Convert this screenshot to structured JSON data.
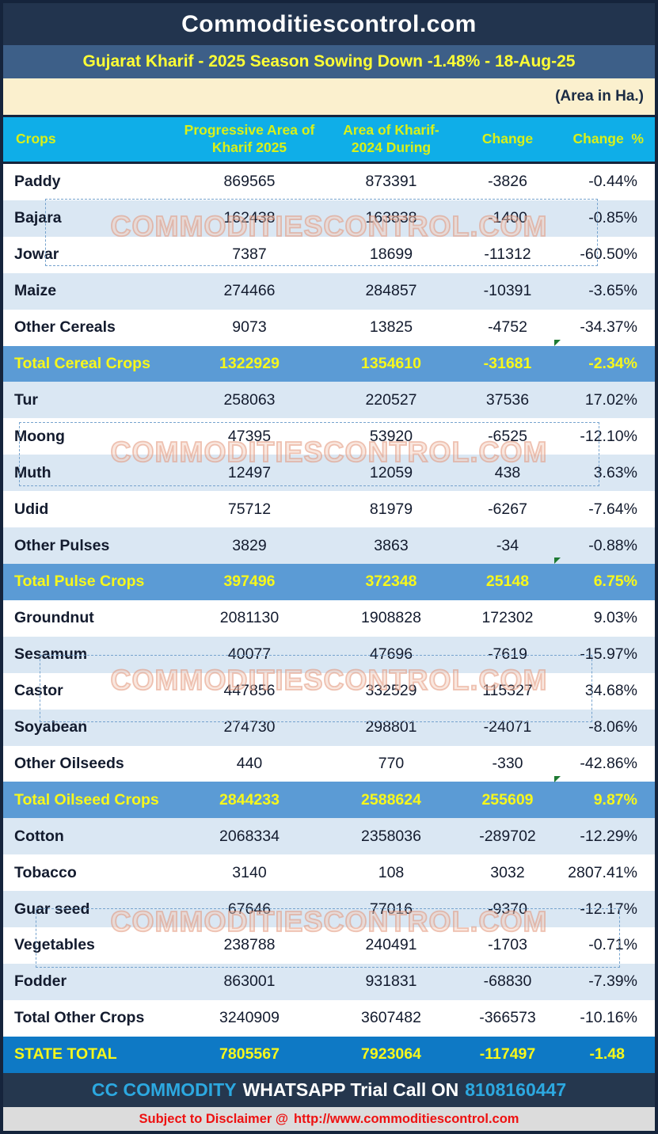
{
  "brand": {
    "title": "Commoditiescontrol.com"
  },
  "report": {
    "headline": "Gujarat Kharif - 2025 Season Sowing Down -1.48% - 18-Aug-25",
    "unit_note": "(Area in Ha.)"
  },
  "watermark": {
    "text": "COMMODITIESCONTROL.COM"
  },
  "table": {
    "columns": [
      "Crops",
      "Progressive Area of Kharif 2025",
      "Area of Kharif-2024 During",
      "Change",
      "Change  %"
    ],
    "rows": [
      {
        "crop": "Paddy",
        "area_2025": "869565",
        "area_2024": "873391",
        "change": "-3826",
        "change_pct": "-0.44%",
        "style": "light"
      },
      {
        "crop": "Bajara",
        "area_2025": "162438",
        "area_2024": "163838",
        "change": "-1400",
        "change_pct": "-0.85%",
        "style": "shaded"
      },
      {
        "crop": "Jowar",
        "area_2025": "7387",
        "area_2024": "18699",
        "change": "-11312",
        "change_pct": "-60.50%",
        "style": "light"
      },
      {
        "crop": "Maize",
        "area_2025": "274466",
        "area_2024": "284857",
        "change": "-10391",
        "change_pct": "-3.65%",
        "style": "shaded"
      },
      {
        "crop": "Other Cereals",
        "area_2025": "9073",
        "area_2024": "13825",
        "change": "-4752",
        "change_pct": "-34.37%",
        "style": "light"
      },
      {
        "crop": "Total Cereal Crops",
        "area_2025": "1322929",
        "area_2024": "1354610",
        "change": "-31681",
        "change_pct": "-2.34%",
        "style": "section_total"
      },
      {
        "crop": "Tur",
        "area_2025": "258063",
        "area_2024": "220527",
        "change": "37536",
        "change_pct": "17.02%",
        "style": "shaded"
      },
      {
        "crop": "Moong",
        "area_2025": "47395",
        "area_2024": "53920",
        "change": "-6525",
        "change_pct": "-12.10%",
        "style": "light"
      },
      {
        "crop": "Muth",
        "area_2025": "12497",
        "area_2024": "12059",
        "change": "438",
        "change_pct": "3.63%",
        "style": "shaded"
      },
      {
        "crop": "Udid",
        "area_2025": "75712",
        "area_2024": "81979",
        "change": "-6267",
        "change_pct": "-7.64%",
        "style": "light"
      },
      {
        "crop": "Other Pulses",
        "area_2025": "3829",
        "area_2024": "3863",
        "change": "-34",
        "change_pct": "-0.88%",
        "style": "shaded"
      },
      {
        "crop": "Total Pulse Crops",
        "area_2025": "397496",
        "area_2024": "372348",
        "change": "25148",
        "change_pct": "6.75%",
        "style": "section_total"
      },
      {
        "crop": "Groundnut",
        "area_2025": "2081130",
        "area_2024": "1908828",
        "change": "172302",
        "change_pct": "9.03%",
        "style": "light"
      },
      {
        "crop": "Sesamum",
        "area_2025": "40077",
        "area_2024": "47696",
        "change": "-7619",
        "change_pct": "-15.97%",
        "style": "shaded"
      },
      {
        "crop": "Castor",
        "area_2025": "447856",
        "area_2024": "332529",
        "change": "115327",
        "change_pct": "34.68%",
        "style": "light"
      },
      {
        "crop": "Soyabean",
        "area_2025": "274730",
        "area_2024": "298801",
        "change": "-24071",
        "change_pct": "-8.06%",
        "style": "shaded"
      },
      {
        "crop": "Other Oilseeds",
        "area_2025": "440",
        "area_2024": "770",
        "change": "-330",
        "change_pct": "-42.86%",
        "style": "light"
      },
      {
        "crop": "Total Oilseed Crops",
        "area_2025": "2844233",
        "area_2024": "2588624",
        "change": "255609",
        "change_pct": "9.87%",
        "style": "section_total"
      },
      {
        "crop": "Cotton",
        "area_2025": "2068334",
        "area_2024": "2358036",
        "change": "-289702",
        "change_pct": "-12.29%",
        "style": "shaded"
      },
      {
        "crop": "Tobacco",
        "area_2025": "3140",
        "area_2024": "108",
        "change": "3032",
        "change_pct": "2807.41%",
        "style": "light"
      },
      {
        "crop": "Guar seed",
        "area_2025": "67646",
        "area_2024": "77016",
        "change": "-9370",
        "change_pct": "-12.17%",
        "style": "shaded"
      },
      {
        "crop": "Vegetables",
        "area_2025": "238788",
        "area_2024": "240491",
        "change": "-1703",
        "change_pct": "-0.71%",
        "style": "light"
      },
      {
        "crop": "Fodder",
        "area_2025": "863001",
        "area_2024": "931831",
        "change": "-68830",
        "change_pct": "-7.39%",
        "style": "shaded"
      },
      {
        "crop": "Total Other Crops",
        "area_2025": "3240909",
        "area_2024": "3607482",
        "change": "-366573",
        "change_pct": "-10.16%",
        "style": "light"
      },
      {
        "crop": "STATE TOTAL",
        "area_2025": "7805567",
        "area_2024": "7923064",
        "change": "-117497",
        "change_pct": "-1.48",
        "style": "grand_total"
      }
    ]
  },
  "footer": {
    "brand": "CC COMMODITY",
    "message": "WHATSAPP Trial Call ON",
    "phone": "8108160447"
  },
  "disclaimer": {
    "label": "Subject to Disclaimer @",
    "url": "http://www.commoditiescontrol.com"
  },
  "colors": {
    "top_bar": "#22344E",
    "headline_bar": "#3D5F88",
    "headline_text": "#FFFF35",
    "unit_bar": "#FBF0CE",
    "table_header_bg": "#0FAEE8",
    "table_header_text": "#D9F018",
    "row_shaded": "#DAE7F3",
    "section_total_bg": "#5B9BD5",
    "grand_total_bg": "#0E79C5",
    "total_text": "#F7F71B",
    "body_text": "#131B2E",
    "footer_bg": "#25374E",
    "footer_accent": "#2CA8E0",
    "disclaimer_bg": "#DCDCDC",
    "disclaimer_text": "#EE1111",
    "watermark": "#E08C6E",
    "selection_dash": "#76A3CE",
    "comment_marker": "#1E7A33"
  }
}
